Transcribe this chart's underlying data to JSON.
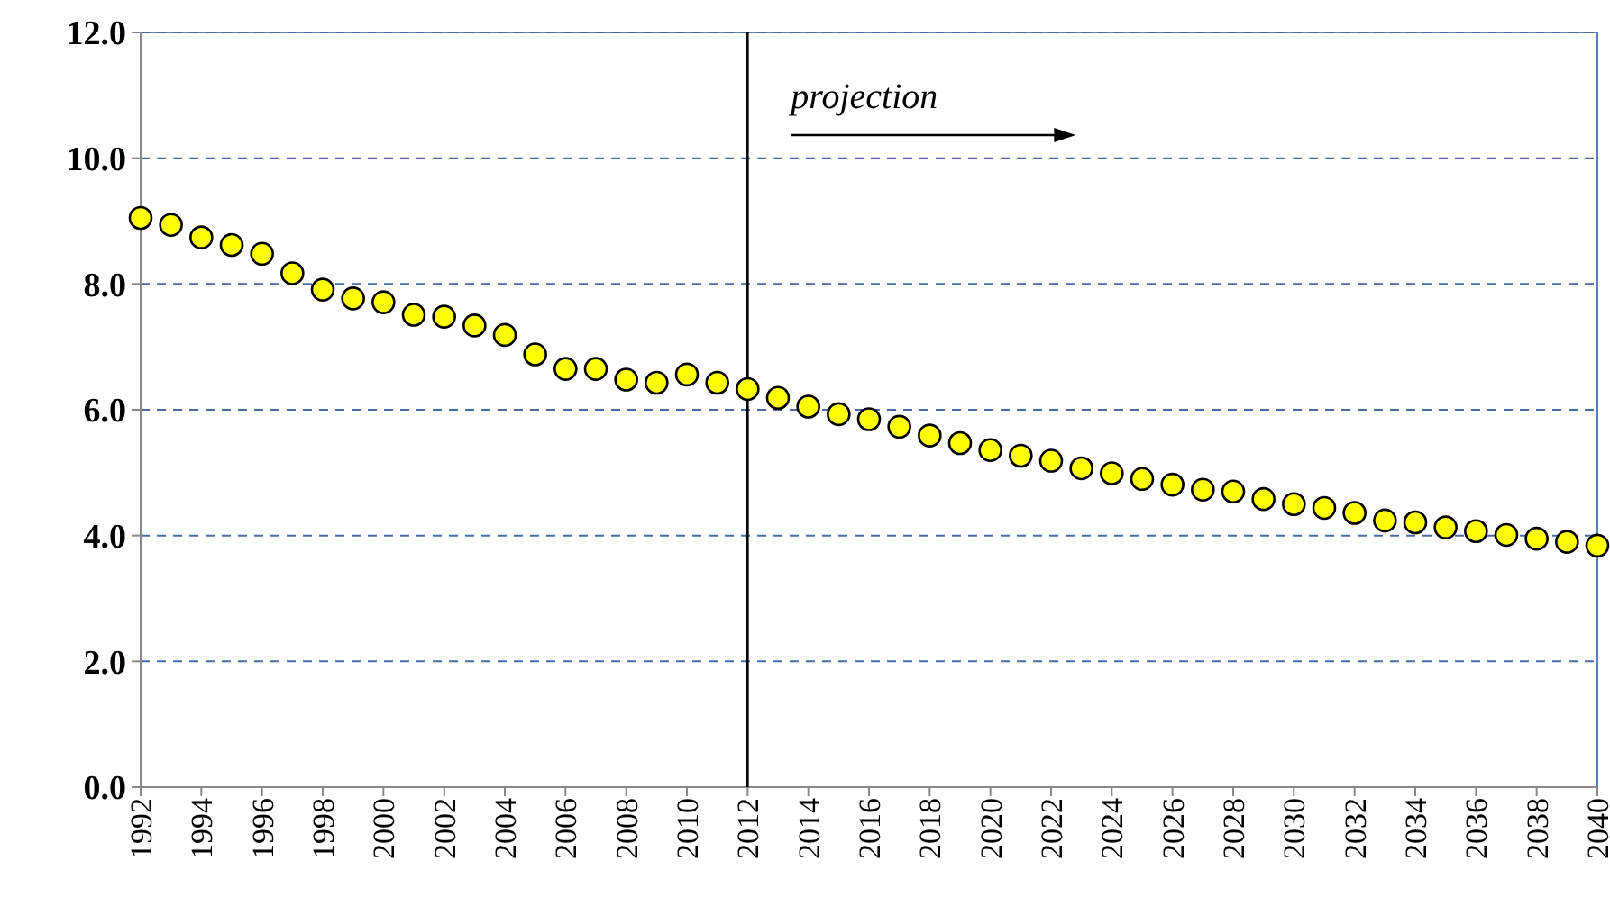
{
  "chart_data": {
    "type": "scatter",
    "x": [
      1992,
      1993,
      1994,
      1995,
      1996,
      1997,
      1998,
      1999,
      2000,
      2001,
      2002,
      2003,
      2004,
      2005,
      2006,
      2007,
      2008,
      2009,
      2010,
      2011,
      2012,
      2013,
      2014,
      2015,
      2016,
      2017,
      2018,
      2019,
      2020,
      2021,
      2022,
      2023,
      2024,
      2025,
      2026,
      2027,
      2028,
      2029,
      2030,
      2031,
      2032,
      2033,
      2034,
      2035,
      2036,
      2037,
      2038,
      2039,
      2040
    ],
    "series": [
      {
        "color": "#ffff00",
        "values": [
          9.05,
          8.94,
          8.74,
          8.62,
          8.48,
          8.17,
          7.91,
          7.77,
          7.71,
          7.51,
          7.48,
          7.34,
          7.19,
          6.88,
          6.65,
          6.65,
          6.48,
          6.43,
          6.56,
          6.43,
          6.33,
          6.19,
          6.05,
          5.93,
          5.85,
          5.73,
          5.59,
          5.47,
          5.36,
          5.27,
          5.19,
          5.07,
          4.99,
          4.9,
          4.81,
          4.73,
          4.7,
          4.58,
          4.5,
          4.44,
          4.36,
          4.24,
          4.21,
          4.13,
          4.07,
          4.01,
          3.95,
          3.9,
          3.84
        ]
      }
    ],
    "xlim": [
      1992,
      2040
    ],
    "xticks": [
      1992,
      1994,
      1996,
      1998,
      2000,
      2002,
      2004,
      2006,
      2008,
      2010,
      2012,
      2014,
      2016,
      2018,
      2020,
      2022,
      2024,
      2026,
      2028,
      2030,
      2032,
      2034,
      2036,
      2038,
      2040
    ],
    "ylim": [
      0,
      12
    ],
    "yticks": [
      {
        "value": 0,
        "label": "0.0"
      },
      {
        "value": 2,
        "label": "2.0"
      },
      {
        "value": 4,
        "label": "4.0"
      },
      {
        "value": 6,
        "label": "6.0"
      },
      {
        "value": 8,
        "label": "8.0"
      },
      {
        "value": 10,
        "label": "10.0"
      },
      {
        "value": 12,
        "label": "12.0"
      }
    ],
    "grid": "y",
    "marker": "circle",
    "ref_lines": [
      {
        "axis": "x",
        "value": 2012,
        "color": "#000000"
      }
    ],
    "annotations": [
      "projection"
    ]
  }
}
